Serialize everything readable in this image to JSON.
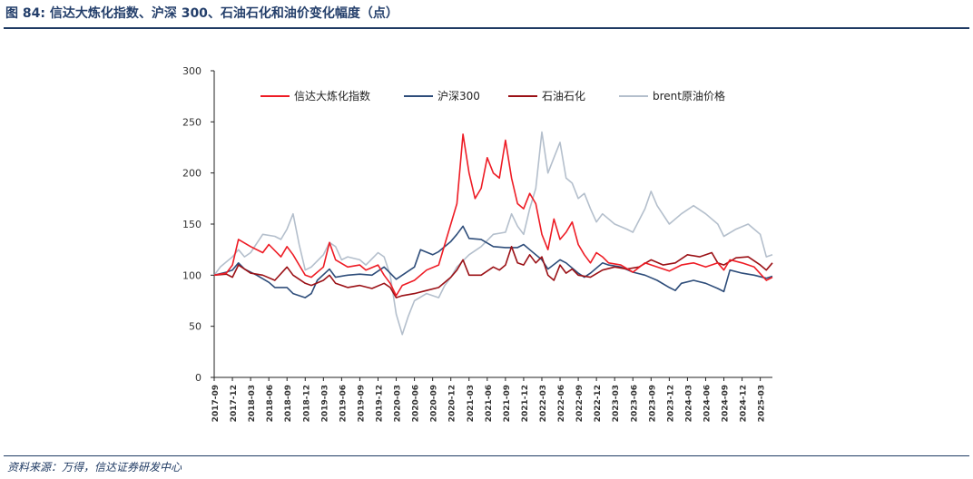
{
  "title": "图 84:  信达大炼化指数、沪深 300、石油石化和油价变化幅度（点）",
  "source": "资料来源：万得，信达证券研发中心",
  "colors": {
    "xinda": "#ee1c25",
    "hs300": "#2e4d7a",
    "petro": "#9b1116",
    "brent": "#b4bfcc",
    "axis": "#222222"
  },
  "chart_data": {
    "type": "line",
    "ylim": [
      0,
      300
    ],
    "yticks": [
      0,
      50,
      100,
      150,
      200,
      250,
      300
    ],
    "xlim": [
      "2017-09",
      "2025-05"
    ],
    "xticks": [
      "2017-09",
      "2017-12",
      "2018-03",
      "2018-06",
      "2018-09",
      "2018-12",
      "2019-03",
      "2019-06",
      "2019-09",
      "2019-12",
      "2020-03",
      "2020-06",
      "2020-09",
      "2020-12",
      "2021-03",
      "2021-06",
      "2021-09",
      "2021-12",
      "2022-03",
      "2022-06",
      "2022-09",
      "2022-12",
      "2023-03",
      "2023-06",
      "2023-09",
      "2023-12",
      "2024-03",
      "2024-06",
      "2024-09",
      "2024-12",
      "2025-03"
    ],
    "legend_position": "top",
    "grid": false,
    "series": [
      {
        "name": "信达大炼化指数",
        "color_key": "xinda",
        "points": [
          [
            "2017-09",
            100
          ],
          [
            "2017-11",
            102
          ],
          [
            "2017-12",
            110
          ],
          [
            "2018-01",
            135
          ],
          [
            "2018-03",
            128
          ],
          [
            "2018-05",
            122
          ],
          [
            "2018-06",
            130
          ],
          [
            "2018-08",
            118
          ],
          [
            "2018-09",
            128
          ],
          [
            "2018-10",
            120
          ],
          [
            "2018-11",
            110
          ],
          [
            "2018-12",
            100
          ],
          [
            "2019-01",
            98
          ],
          [
            "2019-03",
            108
          ],
          [
            "2019-04",
            132
          ],
          [
            "2019-05",
            115
          ],
          [
            "2019-07",
            108
          ],
          [
            "2019-09",
            110
          ],
          [
            "2019-10",
            105
          ],
          [
            "2019-12",
            110
          ],
          [
            "2020-01",
            100
          ],
          [
            "2020-02",
            92
          ],
          [
            "2020-03",
            80
          ],
          [
            "2020-04",
            90
          ],
          [
            "2020-06",
            95
          ],
          [
            "2020-08",
            105
          ],
          [
            "2020-10",
            110
          ],
          [
            "2020-11",
            130
          ],
          [
            "2020-12",
            150
          ],
          [
            "2021-01",
            170
          ],
          [
            "2021-02",
            238
          ],
          [
            "2021-03",
            200
          ],
          [
            "2021-04",
            175
          ],
          [
            "2021-05",
            185
          ],
          [
            "2021-06",
            215
          ],
          [
            "2021-07",
            200
          ],
          [
            "2021-08",
            195
          ],
          [
            "2021-09",
            232
          ],
          [
            "2021-10",
            195
          ],
          [
            "2021-11",
            170
          ],
          [
            "2021-12",
            165
          ],
          [
            "2022-01",
            180
          ],
          [
            "2022-02",
            170
          ],
          [
            "2022-03",
            140
          ],
          [
            "2022-04",
            125
          ],
          [
            "2022-05",
            155
          ],
          [
            "2022-06",
            135
          ],
          [
            "2022-07",
            142
          ],
          [
            "2022-08",
            152
          ],
          [
            "2022-09",
            130
          ],
          [
            "2022-10",
            120
          ],
          [
            "2022-11",
            112
          ],
          [
            "2022-12",
            122
          ],
          [
            "2023-01",
            118
          ],
          [
            "2023-02",
            112
          ],
          [
            "2023-04",
            110
          ],
          [
            "2023-06",
            103
          ],
          [
            "2023-08",
            112
          ],
          [
            "2023-10",
            108
          ],
          [
            "2023-12",
            104
          ],
          [
            "2024-02",
            110
          ],
          [
            "2024-04",
            112
          ],
          [
            "2024-06",
            108
          ],
          [
            "2024-08",
            112
          ],
          [
            "2024-09",
            105
          ],
          [
            "2024-10",
            115
          ],
          [
            "2024-12",
            112
          ],
          [
            "2025-02",
            108
          ],
          [
            "2025-04",
            95
          ],
          [
            "2025-05",
            98
          ]
        ]
      },
      {
        "name": "沪深300",
        "color_key": "hs300",
        "points": [
          [
            "2017-09",
            100
          ],
          [
            "2017-11",
            103
          ],
          [
            "2017-12",
            105
          ],
          [
            "2018-01",
            112
          ],
          [
            "2018-02",
            106
          ],
          [
            "2018-04",
            100
          ],
          [
            "2018-06",
            93
          ],
          [
            "2018-07",
            88
          ],
          [
            "2018-09",
            88
          ],
          [
            "2018-10",
            82
          ],
          [
            "2018-12",
            78
          ],
          [
            "2019-01",
            82
          ],
          [
            "2019-02",
            95
          ],
          [
            "2019-04",
            106
          ],
          [
            "2019-05",
            98
          ],
          [
            "2019-07",
            100
          ],
          [
            "2019-09",
            101
          ],
          [
            "2019-11",
            100
          ],
          [
            "2020-01",
            108
          ],
          [
            "2020-02",
            102
          ],
          [
            "2020-03",
            96
          ],
          [
            "2020-04",
            100
          ],
          [
            "2020-06",
            108
          ],
          [
            "2020-07",
            125
          ],
          [
            "2020-09",
            120
          ],
          [
            "2020-10",
            123
          ],
          [
            "2020-12",
            133
          ],
          [
            "2021-01",
            140
          ],
          [
            "2021-02",
            148
          ],
          [
            "2021-03",
            136
          ],
          [
            "2021-05",
            135
          ],
          [
            "2021-07",
            128
          ],
          [
            "2021-09",
            127
          ],
          [
            "2021-11",
            127
          ],
          [
            "2021-12",
            130
          ],
          [
            "2022-01",
            125
          ],
          [
            "2022-03",
            115
          ],
          [
            "2022-04",
            106
          ],
          [
            "2022-06",
            115
          ],
          [
            "2022-07",
            112
          ],
          [
            "2022-09",
            102
          ],
          [
            "2022-10",
            98
          ],
          [
            "2022-11",
            102
          ],
          [
            "2023-01",
            112
          ],
          [
            "2023-02",
            110
          ],
          [
            "2023-04",
            108
          ],
          [
            "2023-06",
            103
          ],
          [
            "2023-08",
            100
          ],
          [
            "2023-10",
            95
          ],
          [
            "2023-12",
            88
          ],
          [
            "2024-01",
            85
          ],
          [
            "2024-02",
            92
          ],
          [
            "2024-04",
            95
          ],
          [
            "2024-06",
            92
          ],
          [
            "2024-08",
            87
          ],
          [
            "2024-09",
            84
          ],
          [
            "2024-10",
            105
          ],
          [
            "2024-12",
            102
          ],
          [
            "2025-02",
            100
          ],
          [
            "2025-04",
            97
          ],
          [
            "2025-05",
            99
          ]
        ]
      },
      {
        "name": "石油石化",
        "color_key": "petro",
        "points": [
          [
            "2017-09",
            100
          ],
          [
            "2017-11",
            101
          ],
          [
            "2017-12",
            98
          ],
          [
            "2018-01",
            110
          ],
          [
            "2018-03",
            102
          ],
          [
            "2018-05",
            100
          ],
          [
            "2018-07",
            95
          ],
          [
            "2018-09",
            108
          ],
          [
            "2018-10",
            100
          ],
          [
            "2018-12",
            92
          ],
          [
            "2019-01",
            90
          ],
          [
            "2019-03",
            95
          ],
          [
            "2019-04",
            100
          ],
          [
            "2019-05",
            92
          ],
          [
            "2019-07",
            88
          ],
          [
            "2019-09",
            90
          ],
          [
            "2019-11",
            87
          ],
          [
            "2020-01",
            92
          ],
          [
            "2020-02",
            88
          ],
          [
            "2020-03",
            78
          ],
          [
            "2020-04",
            80
          ],
          [
            "2020-06",
            82
          ],
          [
            "2020-08",
            85
          ],
          [
            "2020-10",
            88
          ],
          [
            "2020-12",
            98
          ],
          [
            "2021-01",
            105
          ],
          [
            "2021-02",
            115
          ],
          [
            "2021-03",
            100
          ],
          [
            "2021-05",
            100
          ],
          [
            "2021-07",
            108
          ],
          [
            "2021-08",
            105
          ],
          [
            "2021-09",
            110
          ],
          [
            "2021-10",
            128
          ],
          [
            "2021-11",
            112
          ],
          [
            "2021-12",
            110
          ],
          [
            "2022-01",
            120
          ],
          [
            "2022-02",
            112
          ],
          [
            "2022-03",
            118
          ],
          [
            "2022-04",
            100
          ],
          [
            "2022-05",
            95
          ],
          [
            "2022-06",
            110
          ],
          [
            "2022-07",
            102
          ],
          [
            "2022-08",
            106
          ],
          [
            "2022-09",
            100
          ],
          [
            "2022-11",
            98
          ],
          [
            "2023-01",
            105
          ],
          [
            "2023-03",
            108
          ],
          [
            "2023-05",
            106
          ],
          [
            "2023-07",
            108
          ],
          [
            "2023-09",
            115
          ],
          [
            "2023-11",
            110
          ],
          [
            "2024-01",
            112
          ],
          [
            "2024-03",
            120
          ],
          [
            "2024-05",
            118
          ],
          [
            "2024-07",
            122
          ],
          [
            "2024-08",
            112
          ],
          [
            "2024-09",
            110
          ],
          [
            "2024-11",
            117
          ],
          [
            "2025-01",
            118
          ],
          [
            "2025-03",
            110
          ],
          [
            "2025-04",
            105
          ],
          [
            "2025-05",
            112
          ]
        ]
      },
      {
        "name": "brent原油价格",
        "color_key": "brent",
        "points": [
          [
            "2017-09",
            100
          ],
          [
            "2017-10",
            108
          ],
          [
            "2017-12",
            118
          ],
          [
            "2018-01",
            125
          ],
          [
            "2018-02",
            118
          ],
          [
            "2018-03",
            122
          ],
          [
            "2018-05",
            140
          ],
          [
            "2018-07",
            138
          ],
          [
            "2018-08",
            135
          ],
          [
            "2018-09",
            145
          ],
          [
            "2018-10",
            160
          ],
          [
            "2018-11",
            130
          ],
          [
            "2018-12",
            105
          ],
          [
            "2019-01",
            108
          ],
          [
            "2019-03",
            120
          ],
          [
            "2019-04",
            132
          ],
          [
            "2019-05",
            128
          ],
          [
            "2019-06",
            115
          ],
          [
            "2019-07",
            118
          ],
          [
            "2019-09",
            115
          ],
          [
            "2019-10",
            110
          ],
          [
            "2019-11",
            116
          ],
          [
            "2019-12",
            122
          ],
          [
            "2020-01",
            118
          ],
          [
            "2020-02",
            100
          ],
          [
            "2020-03",
            62
          ],
          [
            "2020-04",
            42
          ],
          [
            "2020-05",
            60
          ],
          [
            "2020-06",
            75
          ],
          [
            "2020-08",
            82
          ],
          [
            "2020-10",
            78
          ],
          [
            "2020-11",
            90
          ],
          [
            "2020-12",
            98
          ],
          [
            "2021-01",
            108
          ],
          [
            "2021-03",
            120
          ],
          [
            "2021-05",
            128
          ],
          [
            "2021-07",
            140
          ],
          [
            "2021-09",
            142
          ],
          [
            "2021-10",
            160
          ],
          [
            "2021-11",
            148
          ],
          [
            "2021-12",
            140
          ],
          [
            "2022-01",
            165
          ],
          [
            "2022-02",
            185
          ],
          [
            "2022-03",
            240
          ],
          [
            "2022-04",
            200
          ],
          [
            "2022-05",
            215
          ],
          [
            "2022-06",
            230
          ],
          [
            "2022-07",
            195
          ],
          [
            "2022-08",
            190
          ],
          [
            "2022-09",
            175
          ],
          [
            "2022-10",
            180
          ],
          [
            "2022-11",
            165
          ],
          [
            "2022-12",
            152
          ],
          [
            "2023-01",
            160
          ],
          [
            "2023-03",
            150
          ],
          [
            "2023-05",
            145
          ],
          [
            "2023-06",
            142
          ],
          [
            "2023-08",
            165
          ],
          [
            "2023-09",
            182
          ],
          [
            "2023-10",
            168
          ],
          [
            "2023-12",
            150
          ],
          [
            "2024-02",
            160
          ],
          [
            "2024-04",
            168
          ],
          [
            "2024-06",
            160
          ],
          [
            "2024-08",
            150
          ],
          [
            "2024-09",
            138
          ],
          [
            "2024-11",
            145
          ],
          [
            "2025-01",
            150
          ],
          [
            "2025-02",
            145
          ],
          [
            "2025-03",
            140
          ],
          [
            "2025-04",
            118
          ],
          [
            "2025-05",
            120
          ]
        ]
      }
    ]
  }
}
